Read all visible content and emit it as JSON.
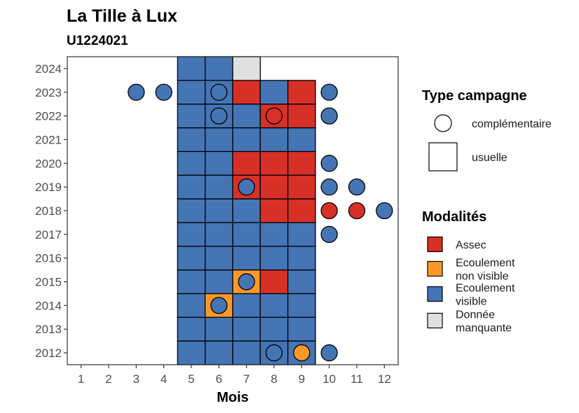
{
  "chart_data": {
    "type": "heatmap",
    "title": "La Tille à Lux",
    "subtitle": "U1224021",
    "xlabel": "Mois",
    "ylabel": "",
    "x_ticks": [
      "1",
      "2",
      "3",
      "4",
      "5",
      "6",
      "7",
      "8",
      "9",
      "10",
      "11",
      "12"
    ],
    "y_ticks": [
      "2012",
      "2013",
      "2014",
      "2015",
      "2016",
      "2017",
      "2018",
      "2019",
      "2020",
      "2021",
      "2022",
      "2023",
      "2024"
    ],
    "xlim": [
      0.5,
      12.5
    ],
    "ylim": [
      2011.5,
      2024.5
    ],
    "colors": {
      "Assec": "#d73027",
      "Ecoulement non visible": "#fe9929",
      "Ecoulement visible": "#4575b4",
      "Donnée manquante": "#e0e0e0"
    },
    "legend_type": {
      "title": "Type campagne",
      "entries": [
        {
          "label": "complémentaire",
          "shape": "circle"
        },
        {
          "label": "usuelle",
          "shape": "square"
        }
      ]
    },
    "legend_modalites": {
      "title": "Modalités",
      "entries": [
        {
          "key": "Assec",
          "lines": [
            "Assec"
          ]
        },
        {
          "key": "Ecoulement non visible",
          "lines": [
            "Ecoulement",
            "non visible"
          ]
        },
        {
          "key": "Ecoulement visible",
          "lines": [
            "Ecoulement",
            "visible"
          ]
        },
        {
          "key": "Donnée manquante",
          "lines": [
            "Donnée",
            "manquante"
          ]
        }
      ]
    },
    "usuelle": [
      {
        "year": 2012,
        "months": [
          "Ecoulement visible",
          "Ecoulement visible",
          "Ecoulement visible",
          "Ecoulement visible",
          "Ecoulement visible"
        ]
      },
      {
        "year": 2013,
        "months": [
          "Ecoulement visible",
          "Ecoulement visible",
          "Ecoulement visible",
          "Ecoulement visible",
          "Ecoulement visible"
        ]
      },
      {
        "year": 2014,
        "months": [
          "Ecoulement visible",
          "Ecoulement non visible",
          "Ecoulement visible",
          "Ecoulement visible",
          "Ecoulement visible"
        ]
      },
      {
        "year": 2015,
        "months": [
          "Ecoulement visible",
          "Ecoulement visible",
          "Ecoulement non visible",
          "Assec",
          "Ecoulement visible"
        ]
      },
      {
        "year": 2016,
        "months": [
          "Ecoulement visible",
          "Ecoulement visible",
          "Ecoulement visible",
          "Ecoulement visible",
          "Ecoulement visible"
        ]
      },
      {
        "year": 2017,
        "months": [
          "Ecoulement visible",
          "Ecoulement visible",
          "Ecoulement visible",
          "Ecoulement visible",
          "Ecoulement visible"
        ]
      },
      {
        "year": 2018,
        "months": [
          "Ecoulement visible",
          "Ecoulement visible",
          "Ecoulement visible",
          "Assec",
          "Assec"
        ]
      },
      {
        "year": 2019,
        "months": [
          "Ecoulement visible",
          "Ecoulement visible",
          "Assec",
          "Assec",
          "Assec"
        ]
      },
      {
        "year": 2020,
        "months": [
          "Ecoulement visible",
          "Ecoulement visible",
          "Assec",
          "Assec",
          "Assec"
        ]
      },
      {
        "year": 2021,
        "months": [
          "Ecoulement visible",
          "Ecoulement visible",
          "Ecoulement visible",
          "Ecoulement visible",
          "Ecoulement visible"
        ]
      },
      {
        "year": 2022,
        "months": [
          "Ecoulement visible",
          "Ecoulement visible",
          "Ecoulement visible",
          "Assec",
          "Assec"
        ]
      },
      {
        "year": 2023,
        "months": [
          "Ecoulement visible",
          "Ecoulement visible",
          "Assec",
          "Ecoulement visible",
          "Assec"
        ]
      },
      {
        "year": 2024,
        "months": [
          "Ecoulement visible",
          "Ecoulement visible",
          "Donnée manquante",
          null,
          null
        ]
      }
    ],
    "usuelle_first_month": 5,
    "complementaire": [
      {
        "year": 2012,
        "month": 8,
        "value": "Ecoulement visible"
      },
      {
        "year": 2012,
        "month": 9,
        "value": "Ecoulement non visible"
      },
      {
        "year": 2012,
        "month": 10,
        "value": "Ecoulement visible"
      },
      {
        "year": 2014,
        "month": 6,
        "value": "Ecoulement visible"
      },
      {
        "year": 2015,
        "month": 7,
        "value": "Ecoulement visible"
      },
      {
        "year": 2017,
        "month": 10,
        "value": "Ecoulement visible"
      },
      {
        "year": 2018,
        "month": 10,
        "value": "Assec"
      },
      {
        "year": 2018,
        "month": 11,
        "value": "Assec"
      },
      {
        "year": 2018,
        "month": 12,
        "value": "Ecoulement visible"
      },
      {
        "year": 2019,
        "month": 7,
        "value": "Ecoulement visible"
      },
      {
        "year": 2019,
        "month": 10,
        "value": "Ecoulement visible"
      },
      {
        "year": 2019,
        "month": 11,
        "value": "Ecoulement visible"
      },
      {
        "year": 2020,
        "month": 10,
        "value": "Ecoulement visible"
      },
      {
        "year": 2022,
        "month": 6,
        "value": "Ecoulement visible"
      },
      {
        "year": 2022,
        "month": 8,
        "value": "Assec"
      },
      {
        "year": 2022,
        "month": 10,
        "value": "Ecoulement visible"
      },
      {
        "year": 2023,
        "month": 3,
        "value": "Ecoulement visible"
      },
      {
        "year": 2023,
        "month": 4,
        "value": "Ecoulement visible"
      },
      {
        "year": 2023,
        "month": 6,
        "value": "Ecoulement visible"
      },
      {
        "year": 2023,
        "month": 10,
        "value": "Ecoulement visible"
      }
    ]
  }
}
